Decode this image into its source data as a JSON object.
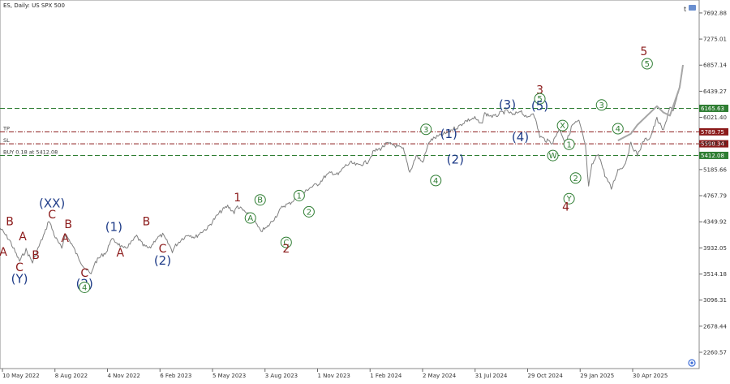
{
  "chart_data": {
    "type": "line",
    "title": "ES, Daily:  US SPX 500",
    "xlabel": "",
    "ylabel": "",
    "ylim": [
      2000,
      7900
    ],
    "grid": false,
    "x_tick_labels": [
      "10 May 2022",
      "8 Aug 2022",
      "4 Nov 2022",
      "6 Feb 2023",
      "5 May 2023",
      "3 Aug 2023",
      "1 Nov 2023",
      "1 Feb 2024",
      "2 May 2024",
      "31 Jul 2024",
      "29 Oct 2024",
      "29 Jan 2025",
      "30 Apr 2025"
    ],
    "y_ticks": [
      7692.88,
      7275.01,
      6857.14,
      6439.27,
      6021.4,
      5603.53,
      5185.66,
      4767.79,
      4349.92,
      3932.05,
      3514.18,
      3096.31,
      2678.44,
      2260.57
    ],
    "y_tick_labels": [
      "7692.88",
      "7275.01",
      "6857.14",
      "6439.27",
      "6021.40",
      "5603.53",
      "5185.66",
      "4767.79",
      "4349.92",
      "3932.05",
      "3514.18",
      "3096.31",
      "2678.44",
      "2260.57"
    ],
    "series": [
      {
        "kind": "price",
        "color": "#7f7f7f",
        "x": [
          0,
          3,
          6,
          8,
          10,
          12,
          14,
          15,
          17,
          19,
          20,
          22,
          24,
          26,
          28,
          29,
          31,
          33,
          34,
          36,
          38,
          40,
          42,
          44,
          46,
          48,
          50,
          52,
          53,
          54,
          56,
          58,
          60,
          62,
          64,
          66,
          68,
          70,
          72,
          73,
          76,
          78,
          80,
          82,
          85,
          87,
          89,
          91,
          93,
          95,
          98,
          100,
          102,
          104,
          106,
          108,
          110,
          113,
          115,
          117,
          119,
          121,
          124,
          126,
          128,
          130,
          132,
          134,
          137,
          139,
          141,
          143,
          146,
          148,
          149,
          152,
          154,
          156,
          158,
          160,
          162,
          164,
          166,
          168,
          170,
          172,
          174,
          176,
          178,
          180,
          181,
          182,
          184,
          186,
          188,
          190,
          192,
          194,
          196,
          198,
          200,
          202,
          204,
          206,
          207,
          209,
          210
        ],
        "y": [
          4250,
          4050,
          3720,
          3900,
          3700,
          3960,
          4200,
          4380,
          4100,
          3920,
          4160,
          4000,
          3780,
          3620,
          3500,
          3680,
          3800,
          3880,
          4070,
          4020,
          3910,
          3990,
          4120,
          3970,
          3920,
          4080,
          4140,
          3980,
          3880,
          3970,
          4080,
          4150,
          4100,
          4190,
          4260,
          4400,
          4520,
          4600,
          4500,
          4600,
          4480,
          4390,
          4200,
          4250,
          4450,
          4600,
          4640,
          4730,
          4780,
          4890,
          4960,
          5080,
          5140,
          5100,
          5240,
          5290,
          5250,
          5310,
          5480,
          5520,
          5600,
          5580,
          5510,
          5140,
          5410,
          5300,
          5640,
          5700,
          5760,
          5830,
          5870,
          5960,
          6010,
          5900,
          6080,
          6030,
          6090,
          6120,
          6050,
          6140,
          6000,
          6110,
          5720,
          5650,
          5620,
          5850,
          5600,
          5900,
          5960,
          5580,
          4900,
          5250,
          5450,
          5100,
          4880,
          5180,
          5250,
          5600,
          5420,
          5650,
          5700,
          6000,
          5800,
          6200,
          6100,
          6500,
          6860
        ]
      },
      {
        "kind": "projection",
        "color": "#a6a6a6",
        "x": [
          190,
          194,
          196,
          202,
          204,
          206,
          209,
          210
        ],
        "y": [
          5650,
          5760,
          5900,
          6200,
          6100,
          6050,
          6500,
          6860
        ]
      }
    ],
    "levels": [
      {
        "label": "6165.63",
        "value": 6165.63,
        "color": "#2e7d32",
        "style": "dashed"
      },
      {
        "label": "5789.75",
        "value": 5789.75,
        "color": "#8b1a1a",
        "style": "dashdot",
        "left_text": "TP"
      },
      {
        "label": "5598.34",
        "value": 5598.34,
        "color": "#8b1a1a",
        "style": "dashdot",
        "left_text": "SL"
      },
      {
        "label": "5412.08",
        "value": 5412.08,
        "color": "#2e7d32",
        "style": "dashed",
        "left_text": "BUY 0.18 at 5412.08"
      }
    ],
    "wave_labels": [
      {
        "text": "A",
        "x": 1,
        "y": 3870,
        "color": "#8b1a1a",
        "size": 14,
        "circle": false
      },
      {
        "text": "B",
        "x": 3,
        "y": 4360,
        "color": "#8b1a1a",
        "size": 14,
        "circle": false
      },
      {
        "text": "A",
        "x": 7,
        "y": 4120,
        "color": "#8b1a1a",
        "size": 14,
        "circle": false
      },
      {
        "text": "C",
        "x": 6,
        "y": 3620,
        "color": "#8b1a1a",
        "size": 14,
        "circle": false
      },
      {
        "text": "(Y)",
        "x": 6,
        "y": 3440,
        "color": "#1f3c88",
        "size": 15,
        "circle": false
      },
      {
        "text": "B",
        "x": 11,
        "y": 3820,
        "color": "#8b1a1a",
        "size": 14,
        "circle": false
      },
      {
        "text": "(XX)",
        "x": 16,
        "y": 4650,
        "color": "#1f3c88",
        "size": 15,
        "circle": false
      },
      {
        "text": "C",
        "x": 16,
        "y": 4470,
        "color": "#8b1a1a",
        "size": 14,
        "circle": false
      },
      {
        "text": "A",
        "x": 20,
        "y": 4090,
        "color": "#8b1a1a",
        "size": 14,
        "circle": false
      },
      {
        "text": "B",
        "x": 21,
        "y": 4310,
        "color": "#8b1a1a",
        "size": 14,
        "circle": false
      },
      {
        "text": "C",
        "x": 26,
        "y": 3530,
        "color": "#8b1a1a",
        "size": 14,
        "circle": false
      },
      {
        "text": "(2)",
        "x": 26,
        "y": 3360,
        "color": "#1f3c88",
        "size": 15,
        "circle": false
      },
      {
        "text": "4",
        "x": 26,
        "y": 3300,
        "color": "#2e7d32",
        "size": 10,
        "circle": true
      },
      {
        "text": "(1)",
        "x": 35,
        "y": 4270,
        "color": "#1f3c88",
        "size": 15,
        "circle": false
      },
      {
        "text": "A",
        "x": 37,
        "y": 3860,
        "color": "#8b1a1a",
        "size": 14,
        "circle": false
      },
      {
        "text": "B",
        "x": 45,
        "y": 4360,
        "color": "#8b1a1a",
        "size": 14,
        "circle": false
      },
      {
        "text": "C",
        "x": 50,
        "y": 3920,
        "color": "#8b1a1a",
        "size": 14,
        "circle": false
      },
      {
        "text": "(2)",
        "x": 50,
        "y": 3730,
        "color": "#1f3c88",
        "size": 15,
        "circle": false
      },
      {
        "text": "1",
        "x": 73,
        "y": 4740,
        "color": "#8b1a1a",
        "size": 14,
        "circle": false
      },
      {
        "text": "A",
        "x": 77,
        "y": 4410,
        "color": "#2e7d32",
        "size": 10,
        "circle": true
      },
      {
        "text": "B",
        "x": 80,
        "y": 4700,
        "color": "#2e7d32",
        "size": 10,
        "circle": true
      },
      {
        "text": "C",
        "x": 88,
        "y": 4020,
        "color": "#2e7d32",
        "size": 10,
        "circle": true
      },
      {
        "text": "2",
        "x": 88,
        "y": 3920,
        "color": "#8b1a1a",
        "size": 14,
        "circle": false
      },
      {
        "text": "1",
        "x": 92,
        "y": 4770,
        "color": "#2e7d32",
        "size": 10,
        "circle": true
      },
      {
        "text": "2",
        "x": 95,
        "y": 4510,
        "color": "#2e7d32",
        "size": 10,
        "circle": true
      },
      {
        "text": "3",
        "x": 131,
        "y": 5830,
        "color": "#2e7d32",
        "size": 10,
        "circle": true
      },
      {
        "text": "4",
        "x": 134,
        "y": 5010,
        "color": "#2e7d32",
        "size": 10,
        "circle": true
      },
      {
        "text": "(1)",
        "x": 138,
        "y": 5760,
        "color": "#1f3c88",
        "size": 15,
        "circle": false
      },
      {
        "text": "(2)",
        "x": 140,
        "y": 5350,
        "color": "#1f3c88",
        "size": 15,
        "circle": false
      },
      {
        "text": "(3)",
        "x": 156,
        "y": 6230,
        "color": "#1f3c88",
        "size": 15,
        "circle": false
      },
      {
        "text": "(4)",
        "x": 160,
        "y": 5710,
        "color": "#1f3c88",
        "size": 15,
        "circle": false
      },
      {
        "text": "3",
        "x": 166,
        "y": 6460,
        "color": "#8b1a1a",
        "size": 14,
        "circle": false
      },
      {
        "text": "5",
        "x": 166,
        "y": 6320,
        "color": "#2e7d32",
        "size": 10,
        "circle": true
      },
      {
        "text": "(5)",
        "x": 166,
        "y": 6210,
        "color": "#1f3c88",
        "size": 15,
        "circle": false
      },
      {
        "text": "X",
        "x": 173,
        "y": 5890,
        "color": "#2e7d32",
        "size": 10,
        "circle": true
      },
      {
        "text": "W",
        "x": 170,
        "y": 5410,
        "color": "#2e7d32",
        "size": 10,
        "circle": true
      },
      {
        "text": "1",
        "x": 175,
        "y": 5590,
        "color": "#2e7d32",
        "size": 10,
        "circle": true
      },
      {
        "text": "2",
        "x": 177,
        "y": 5050,
        "color": "#2e7d32",
        "size": 10,
        "circle": true
      },
      {
        "text": "Y",
        "x": 175,
        "y": 4720,
        "color": "#2e7d32",
        "size": 10,
        "circle": true
      },
      {
        "text": "4",
        "x": 174,
        "y": 4590,
        "color": "#8b1a1a",
        "size": 14,
        "circle": false
      },
      {
        "text": "3",
        "x": 185,
        "y": 6220,
        "color": "#2e7d32",
        "size": 10,
        "circle": true
      },
      {
        "text": "4",
        "x": 190,
        "y": 5840,
        "color": "#2e7d32",
        "size": 10,
        "circle": true
      },
      {
        "text": "5",
        "x": 198,
        "y": 7080,
        "color": "#8b1a1a",
        "size": 14,
        "circle": false
      },
      {
        "text": "5",
        "x": 199,
        "y": 6880,
        "color": "#2e7d32",
        "size": 10,
        "circle": true
      }
    ]
  }
}
